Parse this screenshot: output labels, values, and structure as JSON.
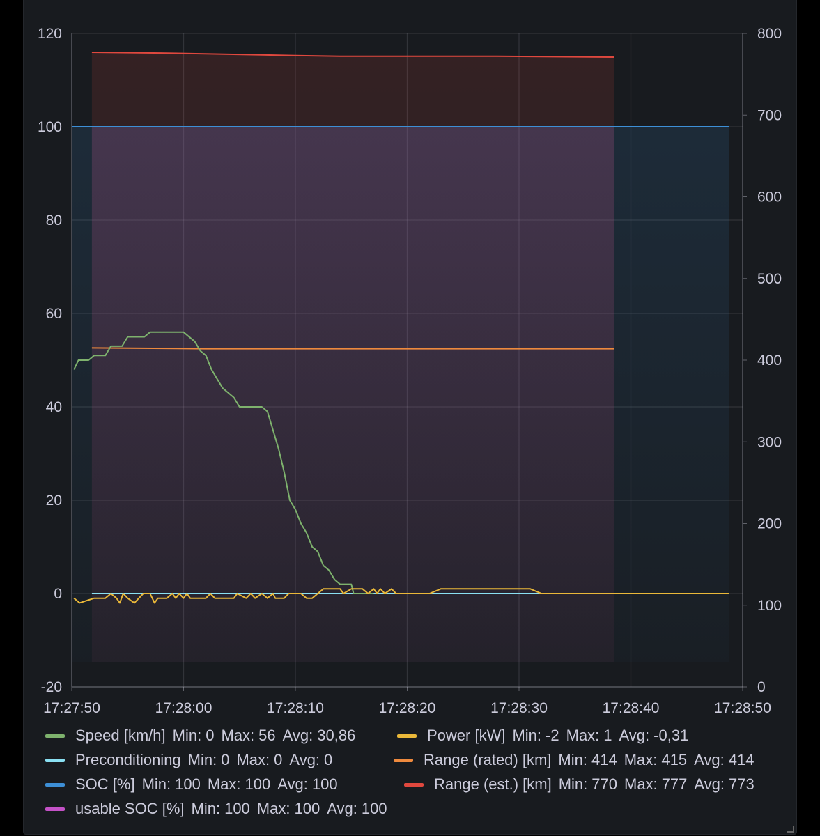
{
  "chart_data": {
    "type": "line",
    "x": {
      "ticks": [
        "17:27:50",
        "17:28:00",
        "17:28:10",
        "17:28:20",
        "17:28:30",
        "17:28:40",
        "17:28:50"
      ],
      "range_seconds": [
        0,
        60
      ]
    },
    "y_left": {
      "ticks": [
        120,
        100,
        80,
        60,
        40,
        20,
        0,
        -20
      ],
      "range": [
        -20,
        120
      ]
    },
    "y_right": {
      "ticks": [
        800,
        700,
        600,
        500,
        400,
        300,
        200,
        100,
        0
      ],
      "range": [
        0,
        800
      ]
    },
    "grid": true,
    "legend_position": "bottom",
    "series": [
      {
        "name": "usable SOC [%]",
        "color": "#c452c7",
        "axis": "left",
        "fill": true,
        "points": [
          [
            1.8,
            100
          ],
          [
            48.5,
            100
          ]
        ]
      },
      {
        "name": "Range (est.) [km]",
        "color": "#e0483e",
        "axis": "right",
        "fill": true,
        "points": [
          [
            1.8,
            777
          ],
          [
            8,
            776
          ],
          [
            20,
            773
          ],
          [
            24,
            772
          ],
          [
            30,
            772
          ],
          [
            38,
            772
          ],
          [
            48.5,
            771
          ]
        ]
      },
      {
        "name": "SOC [%]",
        "color": "#3d8fd6",
        "axis": "left",
        "fill": true,
        "points": [
          [
            0,
            100
          ],
          [
            58.8,
            100
          ]
        ]
      },
      {
        "name": "Range (rated) [km]",
        "color": "#ee8a3e",
        "axis": "right",
        "fill": false,
        "points": [
          [
            1.8,
            415
          ],
          [
            12,
            414
          ],
          [
            48.5,
            414
          ]
        ]
      },
      {
        "name": "Preconditioning",
        "color": "#8ae0f2",
        "axis": "left",
        "fill": false,
        "points": [
          [
            1.8,
            0
          ],
          [
            48.5,
            0
          ]
        ]
      },
      {
        "name": "Speed [km/h]",
        "color": "#7eb26d",
        "axis": "left",
        "fill": false,
        "points": [
          [
            0.2,
            48
          ],
          [
            0.6,
            50
          ],
          [
            1.5,
            50
          ],
          [
            2,
            51
          ],
          [
            3,
            51
          ],
          [
            3.5,
            53
          ],
          [
            4.5,
            53
          ],
          [
            5,
            55
          ],
          [
            6,
            55
          ],
          [
            6.5,
            55
          ],
          [
            7,
            56
          ],
          [
            9,
            56
          ],
          [
            10,
            56
          ],
          [
            11,
            54
          ],
          [
            11.5,
            52
          ],
          [
            12,
            51
          ],
          [
            12.5,
            48
          ],
          [
            13,
            46
          ],
          [
            13.5,
            44
          ],
          [
            14,
            43
          ],
          [
            14.5,
            42
          ],
          [
            15,
            40
          ],
          [
            17,
            40
          ],
          [
            17.5,
            39
          ],
          [
            18,
            35
          ],
          [
            18.5,
            31
          ],
          [
            19,
            26
          ],
          [
            19.5,
            20
          ],
          [
            20,
            18
          ],
          [
            20.5,
            15
          ],
          [
            21,
            13
          ],
          [
            21.5,
            10
          ],
          [
            22,
            9
          ],
          [
            22.5,
            6
          ],
          [
            23,
            5
          ],
          [
            23.5,
            3
          ],
          [
            24,
            2
          ],
          [
            25,
            2
          ],
          [
            25.2,
            0
          ],
          [
            27,
            0
          ]
        ]
      },
      {
        "name": "Power [kW]",
        "color": "#eab839",
        "axis": "left",
        "fill": false,
        "points": [
          [
            0.2,
            -1
          ],
          [
            0.7,
            -2
          ],
          [
            2,
            -1
          ],
          [
            3,
            -1
          ],
          [
            3.5,
            0
          ],
          [
            4,
            -1
          ],
          [
            4.3,
            -2
          ],
          [
            4.6,
            0
          ],
          [
            5,
            -1
          ],
          [
            5.6,
            -2
          ],
          [
            6,
            -1
          ],
          [
            6.4,
            0
          ],
          [
            7,
            0
          ],
          [
            7.4,
            -2
          ],
          [
            7.7,
            -1
          ],
          [
            8.5,
            -1
          ],
          [
            9,
            0
          ],
          [
            9.3,
            -1
          ],
          [
            9.6,
            0
          ],
          [
            10,
            -1
          ],
          [
            10.3,
            0
          ],
          [
            10.6,
            -1
          ],
          [
            12,
            -1
          ],
          [
            12.4,
            0
          ],
          [
            12.8,
            -1
          ],
          [
            14.5,
            -1
          ],
          [
            14.8,
            0
          ],
          [
            15.6,
            -1
          ],
          [
            16,
            0
          ],
          [
            16.4,
            -1
          ],
          [
            17,
            0
          ],
          [
            17.5,
            -1
          ],
          [
            18,
            0
          ],
          [
            18.2,
            -1
          ],
          [
            19,
            -1
          ],
          [
            19.4,
            0
          ],
          [
            20.5,
            0
          ],
          [
            21,
            -1
          ],
          [
            21.5,
            -1
          ],
          [
            22,
            0
          ],
          [
            22.5,
            1
          ],
          [
            24,
            1
          ],
          [
            24.3,
            0
          ],
          [
            25,
            1
          ],
          [
            26,
            1
          ],
          [
            26.5,
            0
          ],
          [
            27,
            1
          ],
          [
            27.3,
            0
          ],
          [
            27.6,
            1
          ],
          [
            28,
            0
          ],
          [
            28.6,
            1
          ],
          [
            29,
            0
          ],
          [
            30,
            0
          ],
          [
            31,
            0
          ],
          [
            32,
            0
          ],
          [
            33,
            1
          ],
          [
            41,
            1
          ],
          [
            42,
            0
          ],
          [
            58.8,
            0
          ]
        ]
      }
    ]
  },
  "legend": [
    {
      "name": "Speed [km/h]",
      "color": "#7eb26d",
      "min_label": "Min:",
      "min": "0",
      "max_label": "Max:",
      "max": "56",
      "avg_label": "Avg:",
      "avg": "30,86"
    },
    {
      "name": "Power [kW]",
      "color": "#eab839",
      "min_label": "Min:",
      "min": "-2",
      "max_label": "Max:",
      "max": "1",
      "avg_label": "Avg:",
      "avg": "-0,31"
    },
    {
      "name": "Preconditioning",
      "color": "#8ae0f2",
      "min_label": "Min:",
      "min": "0",
      "max_label": "Max:",
      "max": "0",
      "avg_label": "Avg:",
      "avg": "0"
    },
    {
      "name": "Range (rated) [km]",
      "color": "#ee8a3e",
      "min_label": "Min:",
      "min": "414",
      "max_label": "Max:",
      "max": "415",
      "avg_label": "Avg:",
      "avg": "414"
    },
    {
      "name": "SOC [%]",
      "color": "#3d8fd6",
      "min_label": "Min:",
      "min": "100",
      "max_label": "Max:",
      "max": "100",
      "avg_label": "Avg:",
      "avg": "100"
    },
    {
      "name": "Range (est.) [km]",
      "color": "#e0483e",
      "min_label": "Min:",
      "min": "770",
      "max_label": "Max:",
      "max": "777",
      "avg_label": "Avg:",
      "avg": "773"
    },
    {
      "name": "usable SOC [%]",
      "color": "#c452c7",
      "min_label": "Min:",
      "min": "100",
      "max_label": "Max:",
      "max": "100",
      "avg_label": "Avg:",
      "avg": "100"
    }
  ]
}
